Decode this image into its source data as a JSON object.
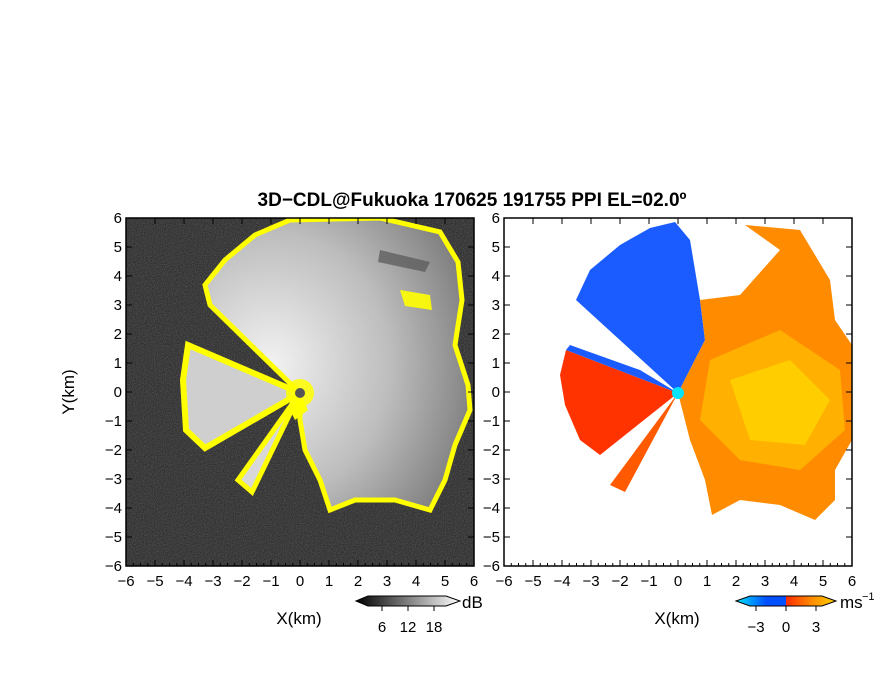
{
  "title": "3D−CDL@Fukuoka 170625 191755 PPI EL=02.0º",
  "chart_data": [
    {
      "type": "heatmap",
      "panel": "reflectivity",
      "xlabel": "X(km)",
      "ylabel": "Y(km)",
      "xlim": [
        -6,
        6
      ],
      "ylim": [
        -6,
        6
      ],
      "x_ticks": [
        "−6",
        "−5",
        "−4",
        "−3",
        "−2",
        "−1",
        "0",
        "1",
        "2",
        "3",
        "4",
        "5",
        "6"
      ],
      "y_ticks": [
        "6",
        "5",
        "4",
        "3",
        "2",
        "1",
        "0",
        "−1",
        "−2",
        "−3",
        "−4",
        "−5",
        "−6"
      ],
      "background_color": "#222222",
      "colorbar": {
        "ticks": [
          "6",
          "12",
          "18"
        ],
        "tick_values": [
          6,
          12,
          18
        ],
        "range": [
          0,
          24
        ],
        "unit": "dB",
        "colors": [
          "#000000",
          "#ffffff"
        ]
      },
      "edge_color": "#ffff00",
      "radar_origin": [
        0,
        0
      ]
    },
    {
      "type": "heatmap",
      "panel": "doppler_velocity",
      "xlabel": "X(km)",
      "xlim": [
        -6,
        6
      ],
      "ylim": [
        -6,
        6
      ],
      "x_ticks": [
        "−6",
        "−5",
        "−4",
        "−3",
        "−2",
        "−1",
        "0",
        "1",
        "2",
        "3",
        "4",
        "5",
        "6"
      ],
      "y_ticks": [
        "6",
        "5",
        "4",
        "3",
        "2",
        "1",
        "0",
        "−1",
        "−2",
        "−3",
        "−4",
        "−5",
        "−6"
      ],
      "background_color": "#ffffff",
      "colorbar": {
        "ticks": [
          "−3",
          "0",
          "3"
        ],
        "tick_values": [
          -3,
          0,
          3
        ],
        "range": [
          -5,
          5
        ],
        "unit": "ms",
        "unit_exponent": "−1",
        "colors": [
          "#00e5ff",
          "#0050ff",
          "#ff2a00",
          "#ff8a00",
          "#ffd000"
        ]
      },
      "radar_origin": [
        0,
        0
      ],
      "origin_color": "#00e5ff"
    }
  ]
}
